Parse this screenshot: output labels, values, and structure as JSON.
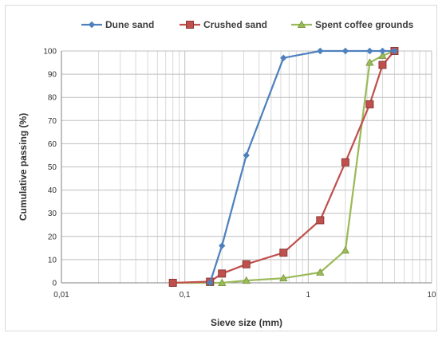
{
  "chart_data": {
    "type": "line",
    "x_scale": "log",
    "xlabel": "Sieve size (mm)",
    "ylabel": "Cumulative passing (%)",
    "xlim": [
      0.01,
      10
    ],
    "ylim": [
      0,
      100
    ],
    "x_tick_labels": [
      "0,01",
      "0,1",
      "1",
      "10"
    ],
    "x_tick_values": [
      0.01,
      0.1,
      1,
      10
    ],
    "y_ticks": [
      0,
      10,
      20,
      30,
      40,
      50,
      60,
      70,
      80,
      90,
      100
    ],
    "grid": true,
    "legend_position": "top",
    "series": [
      {
        "name": "Dune sand",
        "color": "#4f81bd",
        "marker": "diamond",
        "points": [
          [
            0.16,
            0
          ],
          [
            0.2,
            16
          ],
          [
            0.315,
            55
          ],
          [
            0.63,
            97
          ],
          [
            1.25,
            100
          ],
          [
            2,
            100
          ],
          [
            3.15,
            100
          ],
          [
            4,
            100
          ],
          [
            5,
            100
          ]
        ]
      },
      {
        "name": "Crushed sand",
        "color": "#c0504d",
        "marker": "square",
        "points": [
          [
            0.08,
            0
          ],
          [
            0.16,
            0.5
          ],
          [
            0.2,
            4
          ],
          [
            0.315,
            8
          ],
          [
            0.63,
            13
          ],
          [
            1.25,
            27
          ],
          [
            2,
            52
          ],
          [
            3.15,
            77
          ],
          [
            4,
            94
          ],
          [
            5,
            100
          ]
        ]
      },
      {
        "name": "Spent coffee grounds",
        "color": "#9bbb59",
        "marker": "triangle",
        "points": [
          [
            0.08,
            0
          ],
          [
            0.16,
            0
          ],
          [
            0.2,
            0
          ],
          [
            0.315,
            1
          ],
          [
            0.63,
            2
          ],
          [
            1.25,
            4.5
          ],
          [
            2,
            14
          ],
          [
            3.15,
            95
          ],
          [
            4,
            98
          ],
          [
            5,
            100
          ]
        ]
      }
    ]
  }
}
